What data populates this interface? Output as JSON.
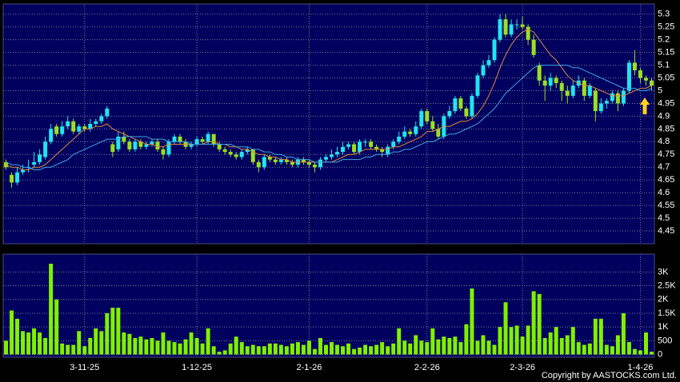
{
  "chart_data": [
    {
      "type": "candlestick",
      "up_color": "#22e4f0",
      "down_color": "#9be020",
      "ylim": [
        4.4,
        5.34
      ],
      "yticks": [
        5.3,
        5.25,
        5.2,
        5.15,
        5.1,
        5.05,
        5,
        4.95,
        4.9,
        4.85,
        4.8,
        4.75,
        4.7,
        4.65,
        4.6,
        4.55,
        4.5,
        4.45
      ],
      "grid": true,
      "open": [
        4.72,
        4.67,
        4.64,
        4.68,
        4.7,
        4.71,
        4.72,
        4.74,
        4.8,
        4.86,
        4.83,
        4.86,
        4.88,
        4.84,
        4.86,
        4.85,
        4.87,
        4.88,
        4.9,
        4.79,
        4.77,
        4.82,
        4.8,
        4.77,
        4.8,
        4.78,
        4.79,
        4.8,
        4.77,
        4.75,
        4.8,
        4.82,
        4.8,
        4.78,
        4.79,
        4.81,
        4.8,
        4.83,
        4.79,
        4.77,
        4.76,
        4.75,
        4.74,
        4.76,
        4.77,
        4.72,
        4.7,
        4.74,
        4.73,
        4.72,
        4.73,
        4.72,
        4.71,
        4.73,
        4.72,
        4.71,
        4.7,
        4.73,
        4.74,
        4.75,
        4.76,
        4.78,
        4.79,
        4.76,
        4.8,
        4.8,
        4.78,
        4.77,
        4.75,
        4.78,
        4.8,
        4.82,
        4.84,
        4.83,
        4.86,
        4.92,
        4.88,
        4.85,
        4.82,
        4.9,
        4.92,
        4.97,
        4.93,
        4.9,
        4.98,
        5.06,
        5.1,
        5.12,
        5.2,
        5.28,
        5.22,
        5.26,
        5.26,
        5.25,
        5.2,
        5.1,
        5.04,
        5.02,
        5.05,
        5.03,
        5.0,
        4.98,
        5.02,
        5.04,
        4.98,
        5.0,
        4.92,
        4.95,
        4.96,
        4.99,
        4.95,
        5.0,
        5.11,
        5.08,
        5.05,
        5.04
      ],
      "high": [
        4.73,
        4.68,
        4.7,
        4.71,
        4.73,
        4.76,
        4.77,
        4.82,
        4.87,
        4.87,
        4.88,
        4.9,
        4.89,
        4.87,
        4.87,
        4.89,
        4.89,
        4.91,
        4.94,
        4.8,
        4.84,
        4.84,
        4.81,
        4.81,
        4.81,
        4.8,
        4.81,
        4.81,
        4.78,
        4.81,
        4.83,
        4.83,
        4.81,
        4.8,
        4.82,
        4.82,
        4.84,
        4.83,
        4.8,
        4.78,
        4.77,
        4.76,
        4.77,
        4.78,
        4.77,
        4.73,
        4.75,
        4.75,
        4.74,
        4.74,
        4.74,
        4.73,
        4.74,
        4.74,
        4.73,
        4.72,
        4.74,
        4.75,
        4.77,
        4.78,
        4.8,
        4.8,
        4.8,
        4.81,
        4.81,
        4.81,
        4.79,
        4.78,
        4.79,
        4.81,
        4.84,
        4.86,
        4.85,
        4.88,
        4.93,
        4.93,
        4.9,
        4.87,
        4.91,
        4.94,
        4.98,
        4.98,
        4.94,
        4.99,
        5.07,
        5.12,
        5.14,
        5.21,
        5.3,
        5.3,
        5.28,
        5.28,
        5.29,
        5.26,
        5.22,
        5.11,
        5.06,
        5.07,
        5.06,
        5.04,
        5.02,
        5.04,
        5.06,
        5.05,
        5.03,
        5.01,
        4.97,
        4.97,
        5.0,
        5.0,
        5.01,
        5.12,
        5.16,
        5.09,
        5.06,
        5.05
      ],
      "low": [
        4.69,
        4.62,
        4.63,
        4.67,
        4.68,
        4.7,
        4.71,
        4.73,
        4.79,
        4.82,
        4.82,
        4.85,
        4.83,
        4.83,
        4.84,
        4.84,
        4.86,
        4.87,
        4.89,
        4.74,
        4.76,
        4.79,
        4.76,
        4.76,
        4.77,
        4.77,
        4.78,
        4.76,
        4.73,
        4.74,
        4.79,
        4.79,
        4.77,
        4.77,
        4.78,
        4.79,
        4.79,
        4.78,
        4.76,
        4.75,
        4.74,
        4.73,
        4.73,
        4.75,
        4.71,
        4.68,
        4.69,
        4.72,
        4.71,
        4.71,
        4.71,
        4.7,
        4.7,
        4.71,
        4.7,
        4.68,
        4.69,
        4.72,
        4.73,
        4.74,
        4.75,
        4.77,
        4.75,
        4.75,
        4.78,
        4.77,
        4.76,
        4.74,
        4.74,
        4.77,
        4.79,
        4.81,
        4.82,
        4.82,
        4.85,
        4.87,
        4.84,
        4.81,
        4.81,
        4.89,
        4.91,
        4.92,
        4.89,
        4.89,
        4.97,
        5.05,
        5.09,
        5.11,
        5.19,
        5.21,
        5.21,
        5.24,
        5.24,
        5.18,
        5.13,
        5.02,
        4.96,
        5.0,
        5.01,
        4.96,
        4.95,
        4.97,
        5.01,
        4.96,
        4.97,
        4.88,
        4.91,
        4.93,
        4.95,
        4.92,
        4.94,
        4.99,
        5.06,
        5.03,
        5.02,
        5.0
      ],
      "close": [
        4.7,
        4.64,
        4.68,
        4.69,
        4.7,
        4.72,
        4.75,
        4.8,
        4.85,
        4.83,
        4.86,
        4.88,
        4.84,
        4.86,
        4.85,
        4.87,
        4.88,
        4.9,
        4.93,
        4.76,
        4.82,
        4.8,
        4.77,
        4.8,
        4.78,
        4.79,
        4.8,
        4.77,
        4.75,
        4.8,
        4.82,
        4.8,
        4.78,
        4.79,
        4.81,
        4.8,
        4.83,
        4.79,
        4.77,
        4.76,
        4.75,
        4.74,
        4.76,
        4.77,
        4.72,
        4.7,
        4.74,
        4.73,
        4.72,
        4.73,
        4.72,
        4.71,
        4.73,
        4.72,
        4.71,
        4.7,
        4.73,
        4.74,
        4.75,
        4.76,
        4.78,
        4.79,
        4.76,
        4.8,
        4.8,
        4.78,
        4.77,
        4.76,
        4.78,
        4.8,
        4.82,
        4.84,
        4.83,
        4.86,
        4.92,
        4.88,
        4.85,
        4.82,
        4.9,
        4.92,
        4.97,
        4.93,
        4.9,
        4.98,
        5.06,
        5.1,
        5.12,
        5.2,
        5.28,
        5.22,
        5.26,
        5.26,
        5.25,
        5.2,
        5.14,
        5.04,
        5.02,
        5.05,
        5.03,
        5.0,
        4.98,
        5.02,
        5.04,
        4.98,
        5.02,
        4.92,
        4.95,
        4.96,
        4.99,
        4.95,
        5.0,
        5.11,
        5.08,
        5.05,
        5.04,
        5.02
      ],
      "lines": [
        {
          "color": "#e08a3c",
          "values": [
            4.71,
            4.7,
            4.7,
            4.69,
            4.69,
            4.7,
            4.7,
            4.71,
            4.73,
            4.75,
            4.77,
            4.79,
            4.81,
            4.83,
            4.85,
            4.85,
            4.86,
            4.86,
            4.87,
            4.85,
            4.84,
            4.83,
            4.82,
            4.81,
            4.8,
            4.79,
            4.79,
            4.78,
            4.78,
            4.79,
            4.79,
            4.79,
            4.79,
            4.79,
            4.79,
            4.79,
            4.8,
            4.8,
            4.79,
            4.79,
            4.78,
            4.78,
            4.77,
            4.77,
            4.76,
            4.75,
            4.75,
            4.74,
            4.74,
            4.73,
            4.73,
            4.72,
            4.72,
            4.72,
            4.72,
            4.72,
            4.72,
            4.72,
            4.72,
            4.73,
            4.74,
            4.75,
            4.75,
            4.76,
            4.77,
            4.77,
            4.77,
            4.77,
            4.77,
            4.78,
            4.78,
            4.79,
            4.8,
            4.81,
            4.82,
            4.84,
            4.84,
            4.85,
            4.86,
            4.86,
            4.87,
            4.88,
            4.88,
            4.89,
            4.91,
            4.94,
            4.98,
            5.03,
            5.09,
            5.14,
            5.18,
            5.21,
            5.23,
            5.24,
            5.23,
            5.2,
            5.17,
            5.14,
            5.12,
            5.09,
            5.06,
            5.04,
            5.03,
            5.02,
            5.02,
            5.01,
            5.0,
            4.99,
            4.98,
            4.98,
            4.98,
            4.99,
            5.0,
            5.01,
            5.01,
            5.02
          ]
        },
        {
          "color": "#3fa8e4",
          "values": [
            4.72,
            4.71,
            4.71,
            4.7,
            4.7,
            4.69,
            4.69,
            4.7,
            4.7,
            4.71,
            4.72,
            4.73,
            4.75,
            4.76,
            4.77,
            4.78,
            4.79,
            4.8,
            4.81,
            4.81,
            4.81,
            4.82,
            4.82,
            4.82,
            4.82,
            4.82,
            4.81,
            4.81,
            4.81,
            4.8,
            4.8,
            4.8,
            4.8,
            4.79,
            4.79,
            4.79,
            4.79,
            4.79,
            4.79,
            4.79,
            4.79,
            4.78,
            4.78,
            4.78,
            4.77,
            4.77,
            4.76,
            4.76,
            4.75,
            4.75,
            4.74,
            4.74,
            4.73,
            4.73,
            4.73,
            4.72,
            4.72,
            4.72,
            4.72,
            4.72,
            4.73,
            4.73,
            4.73,
            4.73,
            4.74,
            4.74,
            4.75,
            4.75,
            4.75,
            4.76,
            4.76,
            4.77,
            4.77,
            4.78,
            4.79,
            4.8,
            4.8,
            4.81,
            4.82,
            4.83,
            4.83,
            4.84,
            4.85,
            4.86,
            4.87,
            4.89,
            4.91,
            4.93,
            4.96,
            4.99,
            5.01,
            5.03,
            5.05,
            5.07,
            5.09,
            5.1,
            5.1,
            5.1,
            5.1,
            5.1,
            5.1,
            5.09,
            5.09,
            5.08,
            5.07,
            5.06,
            5.05,
            5.04,
            5.03,
            5.02,
            5.01,
            5.01,
            5.01,
            5.0,
            5.0,
            5.01
          ]
        }
      ]
    },
    {
      "type": "bar",
      "color": "#80f000",
      "ylim": [
        -100,
        3650
      ],
      "yticks": [
        0,
        500,
        {
          "value": 1000,
          "label": "1K"
        },
        {
          "value": 1500,
          "label": "1.5K"
        },
        {
          "value": 2000,
          "label": "2K"
        },
        {
          "value": 2500,
          "label": "2.5K"
        },
        {
          "value": 3000,
          "label": "3K"
        }
      ],
      "grid": true,
      "categories": [
        null,
        null,
        null,
        null,
        null,
        null,
        null,
        null,
        null,
        null,
        null,
        null,
        null,
        null,
        "3-11-25",
        null,
        null,
        null,
        null,
        null,
        null,
        null,
        null,
        null,
        null,
        null,
        null,
        null,
        null,
        null,
        null,
        null,
        null,
        null,
        "1-12-25",
        null,
        null,
        null,
        null,
        null,
        null,
        null,
        null,
        null,
        null,
        null,
        null,
        null,
        null,
        null,
        null,
        null,
        null,
        null,
        "2-1-26",
        null,
        null,
        null,
        null,
        null,
        null,
        null,
        null,
        null,
        null,
        null,
        null,
        null,
        null,
        null,
        null,
        null,
        null,
        null,
        null,
        "2-2-26",
        null,
        null,
        null,
        null,
        null,
        null,
        null,
        null,
        null,
        null,
        null,
        null,
        null,
        null,
        null,
        null,
        "2-3-26",
        null,
        null,
        null,
        null,
        null,
        null,
        null,
        null,
        null,
        null,
        null,
        null,
        null,
        null,
        null,
        null,
        null,
        null,
        null,
        null,
        "1-4-26",
        null,
        null
      ],
      "values": [
        500,
        1600,
        1300,
        850,
        800,
        950,
        800,
        600,
        3300,
        2000,
        400,
        350,
        350,
        850,
        300,
        600,
        950,
        850,
        1500,
        1700,
        1700,
        800,
        750,
        600,
        650,
        550,
        600,
        500,
        800,
        500,
        450,
        400,
        550,
        800,
        600,
        400,
        950,
        300,
        100,
        150,
        400,
        650,
        450,
        300,
        350,
        300,
        300,
        400,
        400,
        350,
        300,
        400,
        450,
        350,
        500,
        200,
        600,
        350,
        450,
        350,
        300,
        400,
        200,
        250,
        350,
        300,
        350,
        450,
        300,
        400,
        950,
        500,
        400,
        700,
        500,
        450,
        950,
        550,
        650,
        600,
        650,
        450,
        1100,
        2400,
        500,
        700,
        500,
        350,
        1000,
        1900,
        1000,
        1050,
        650,
        1050,
        2300,
        2200,
        600,
        800,
        1000,
        600,
        700,
        1000,
        450,
        350,
        400,
        1300,
        1300,
        350,
        300,
        700,
        1500,
        450,
        200,
        150,
        800,
        100
      ]
    }
  ],
  "copyright": "Copyright by AASTOCKS.com Ltd."
}
